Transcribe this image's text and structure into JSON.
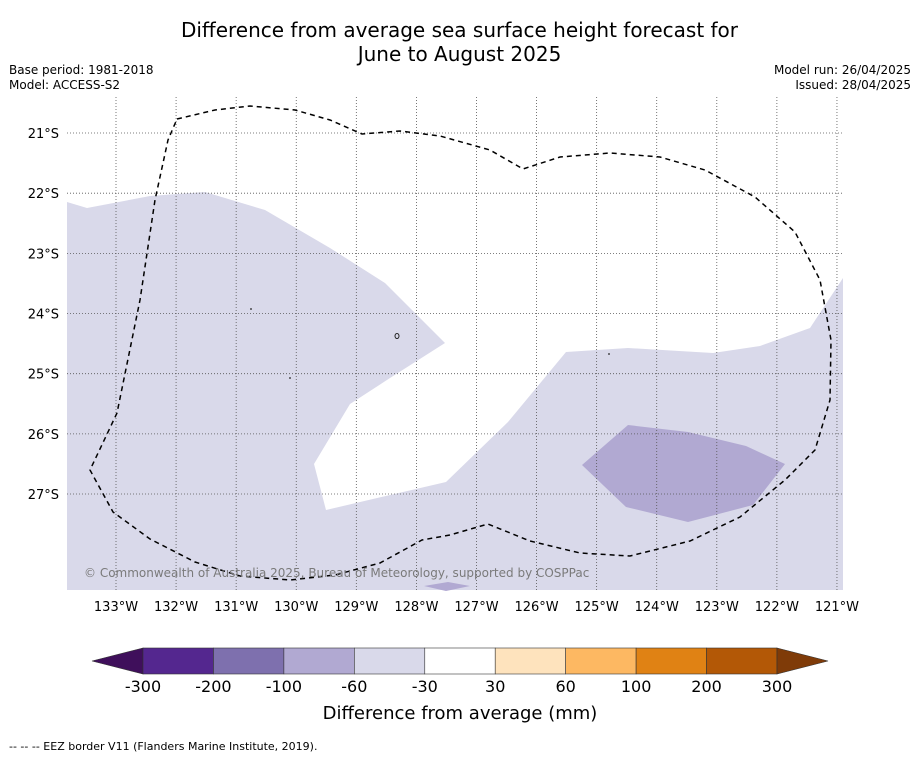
{
  "title_line1": "Difference from average sea surface height forecast for",
  "title_line2": "June to August 2025",
  "base_period": "Base period: 1981-2018",
  "model": "Model: ACCESS-S2",
  "model_run": "Model run: 26/04/2025",
  "issued": "Issued: 28/04/2025",
  "copyright": "© Commonwealth of Australia 2025, Bureau of Meteorology, supported by COSPPac",
  "footnote": "-- -- -- EEZ border V11 (Flanders Marine Institute, 2019).",
  "latitude_labels": [
    "21°S",
    "22°S",
    "23°S",
    "24°S",
    "25°S",
    "26°S",
    "27°S"
  ],
  "longitude_labels": [
    "133°W",
    "132°W",
    "131°W",
    "130°W",
    "129°W",
    "128°W",
    "127°W",
    "126°W",
    "125°W",
    "124°W",
    "123°W",
    "122°W",
    "121°W"
  ],
  "colorbar": {
    "title": "Difference from average (mm)",
    "tick_labels": [
      "-300",
      "-200",
      "-100",
      "-60",
      "-30",
      "30",
      "60",
      "100",
      "200",
      "300"
    ],
    "colors": [
      "#3f0f5b",
      "#54278f",
      "#7e70ae",
      "#b1a9d2",
      "#d9d9ea",
      "#ffffff",
      "#fee3bd",
      "#fdb862",
      "#e08214",
      "#b35806",
      "#7f3b08"
    ]
  },
  "map_fill_colors": {
    "neg_30_60": "#d9d9ea",
    "neg_60_100": "#b1a9d2",
    "neutral": "#ffffff",
    "land_marks": "#222222"
  }
}
